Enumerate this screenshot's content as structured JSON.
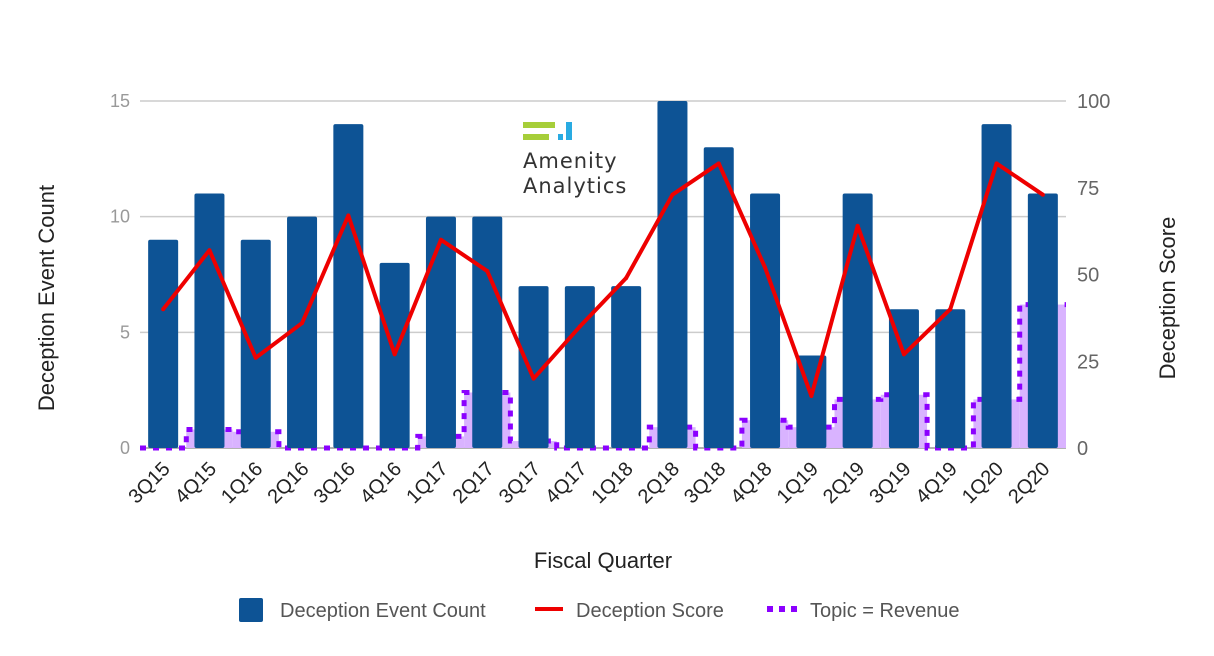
{
  "chart_data": {
    "type": "bar",
    "categories": [
      "3Q15",
      "4Q15",
      "1Q16",
      "2Q16",
      "3Q16",
      "4Q16",
      "1Q17",
      "2Q17",
      "3Q17",
      "4Q17",
      "1Q18",
      "2Q18",
      "3Q18",
      "4Q18",
      "1Q19",
      "2Q19",
      "3Q19",
      "4Q19",
      "1Q20",
      "2Q20"
    ],
    "xlabel": "Fiscal Quarter",
    "ylabel": "Deception Event Count",
    "y2label": "Deception Score",
    "ylim": [
      0,
      15
    ],
    "y2lim": [
      0,
      100
    ],
    "yticks": [
      0,
      5,
      10,
      15
    ],
    "y2ticks": [
      0,
      25,
      50,
      75,
      100
    ],
    "grid": true,
    "legend_position": "bottom",
    "series": [
      {
        "name": "Deception Event Count",
        "type": "bar",
        "axis": "left",
        "color": "#0d5395",
        "values": [
          9,
          11,
          9,
          10,
          14,
          8,
          10,
          10,
          7,
          7,
          7,
          15,
          13,
          11,
          4,
          11,
          6,
          6,
          14,
          11
        ]
      },
      {
        "name": "Deception Score",
        "type": "line",
        "axis": "right",
        "color": "#ee0000",
        "values": [
          40,
          57,
          26,
          36,
          67,
          27,
          60,
          51,
          20,
          35,
          49,
          73,
          82,
          52,
          15,
          64,
          27,
          40,
          82,
          73
        ]
      },
      {
        "name": "Topic = Revenue",
        "type": "step-area",
        "axis": "left",
        "color": "#8b00ff",
        "fill": "#d9b3ff",
        "values": [
          0,
          0.8,
          0.7,
          0,
          0,
          0,
          0.5,
          2.4,
          0.3,
          0,
          0,
          0.9,
          0,
          1.2,
          0.9,
          2.1,
          2.3,
          0,
          2.1,
          6.2
        ]
      }
    ]
  },
  "logo": {
    "line1": "Amenity",
    "line2": "Analytics",
    "colors": {
      "green": "#a6ce39",
      "blue": "#29abe2"
    }
  }
}
